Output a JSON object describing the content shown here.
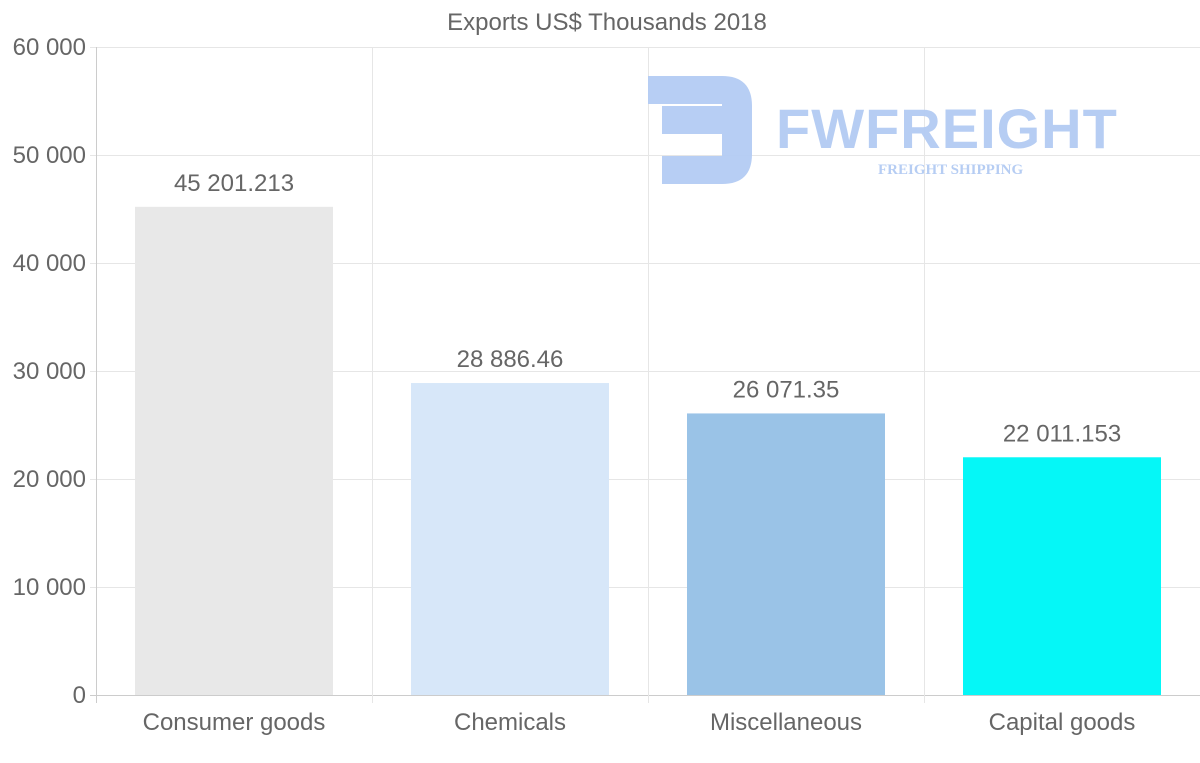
{
  "chart_data": {
    "type": "bar",
    "title": "Exports US$ Thousands 2018",
    "categories": [
      "Consumer goods",
      "Chemicals",
      "Miscellaneous",
      "Capital goods"
    ],
    "values": [
      45201.213,
      28886.46,
      26071.35,
      22011.153
    ],
    "data_labels": [
      "45 201.213",
      "28 886.46",
      "26 071.35",
      "22 011.153"
    ],
    "colors": [
      "#e8e8e8",
      "#d7e7f9",
      "#9ac3e7",
      "#05f7f7"
    ],
    "ylim": [
      0,
      60000
    ],
    "yticks": [
      0,
      10000,
      20000,
      30000,
      40000,
      50000,
      60000
    ],
    "ytick_labels": [
      "0",
      "10 000",
      "20 000",
      "30 000",
      "40 000",
      "50 000",
      "60 000"
    ],
    "xlabel": "",
    "ylabel": "",
    "grid": true,
    "legend": false
  },
  "watermark": {
    "brand": "FWFREIGHT",
    "tagline": "FREIGHT SHIPPING",
    "color": "#b3cbf3"
  }
}
